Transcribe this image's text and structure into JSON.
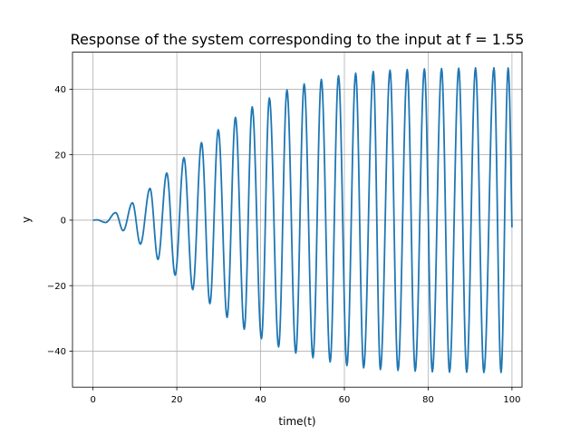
{
  "chart_data": {
    "type": "line",
    "title": "Response of the system corresponding to the input at f = 1.55",
    "xlabel": "time(t)",
    "ylabel": "y",
    "xlim": [
      -4.9,
      102.4
    ],
    "ylim": [
      -51.0,
      51.3
    ],
    "xticks": [
      0,
      20,
      40,
      60,
      80,
      100
    ],
    "yticks": [
      -40,
      -20,
      0,
      20,
      40
    ],
    "xtick_labels": [
      "0",
      "20",
      "40",
      "60",
      "80",
      "100"
    ],
    "ytick_labels": [
      "−40",
      "−20",
      "0",
      "20",
      "40"
    ],
    "grid": true,
    "series": [
      {
        "color": "#1f77b4",
        "t_end": 100,
        "frequency": 1.55,
        "peak_times": [
          0.9,
          5.4,
          9.4,
          13.6,
          17.6,
          21.7,
          25.9,
          29.9,
          34.0,
          38.0,
          42.1,
          46.3,
          50.4,
          54.5,
          58.6,
          62.7,
          66.9,
          70.9,
          75.0,
          79.1,
          83.2,
          87.3,
          91.3,
          95.7
        ],
        "peak_values": [
          0.1,
          2.3,
          5.3,
          9.7,
          14.4,
          19.1,
          23.7,
          27.6,
          31.4,
          34.6,
          37.3,
          39.8,
          41.6,
          43.0,
          44.1,
          44.9,
          45.4,
          45.8,
          46.0,
          46.2,
          46.3,
          46.4,
          46.5,
          46.5
        ],
        "trough_times": [
          3.0,
          7.2,
          11.3,
          15.5,
          19.6,
          23.8,
          27.9,
          32.0,
          36.1,
          40.2,
          44.3,
          48.4,
          52.5,
          56.6,
          60.6,
          64.6,
          68.6,
          72.8,
          76.9,
          81.0,
          85.1,
          89.2,
          93.3,
          97.4
        ],
        "trough_values": [
          -0.7,
          -3.2,
          -7.3,
          -12.0,
          -16.8,
          -21.2,
          -25.5,
          -29.7,
          -33.3,
          -36.2,
          -38.7,
          -40.6,
          -42.0,
          -43.3,
          -44.4,
          -45.1,
          -45.6,
          -45.9,
          -46.1,
          -46.3,
          -46.4,
          -46.4,
          -46.5,
          -46.5
        ],
        "end_value": -2.2
      }
    ]
  }
}
